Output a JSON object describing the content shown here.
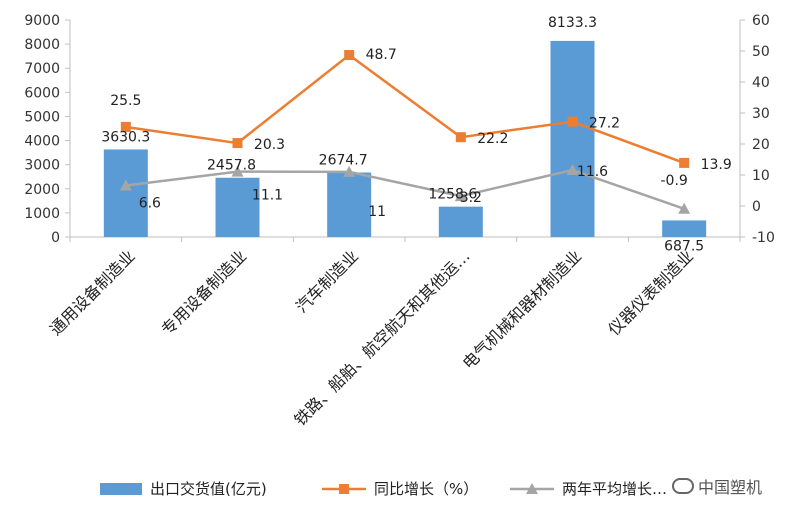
{
  "chart_data": {
    "type": "bar",
    "categories": [
      "通用设备制造业",
      "专用设备制造业",
      "汽车制造业",
      "铁路、船舶、航空航天和其他运…",
      "电气机械和器材制造业",
      "仪器仪表制造业"
    ],
    "series": [
      {
        "name": "出口交货值(亿元)",
        "type": "bar",
        "axis": "left",
        "color": "#5B9BD5",
        "values": [
          3630.3,
          2457.8,
          2674.7,
          1258.6,
          8133.3,
          687.5
        ]
      },
      {
        "name": "同比增长（%）",
        "type": "line",
        "axis": "right",
        "color": "#ED7D31",
        "marker": "square",
        "values": [
          25.5,
          20.3,
          48.7,
          22.2,
          27.2,
          13.9
        ]
      },
      {
        "name": "两年平均增长…",
        "type": "line",
        "axis": "right",
        "color": "#A5A5A5",
        "marker": "triangle",
        "values": [
          6.6,
          11.1,
          11,
          3.2,
          11.6,
          -0.9
        ]
      }
    ],
    "y_left": {
      "range": [
        0,
        9000
      ],
      "ticks": [
        "0",
        "1000",
        "2000",
        "3000",
        "4000",
        "5000",
        "6000",
        "7000",
        "8000",
        "9000"
      ]
    },
    "y_right": {
      "range": [
        -10,
        60
      ],
      "ticks": [
        "-10",
        "0",
        "10",
        "20",
        "30",
        "40",
        "50",
        "60"
      ]
    },
    "grid": false,
    "legend": "bottom"
  },
  "legend": {
    "bar_label": "出口交货值(亿元)",
    "line1_label": "同比增长（%）",
    "line2_label": "两年平均增长…"
  },
  "watermark": {
    "text": "中国塑机"
  }
}
